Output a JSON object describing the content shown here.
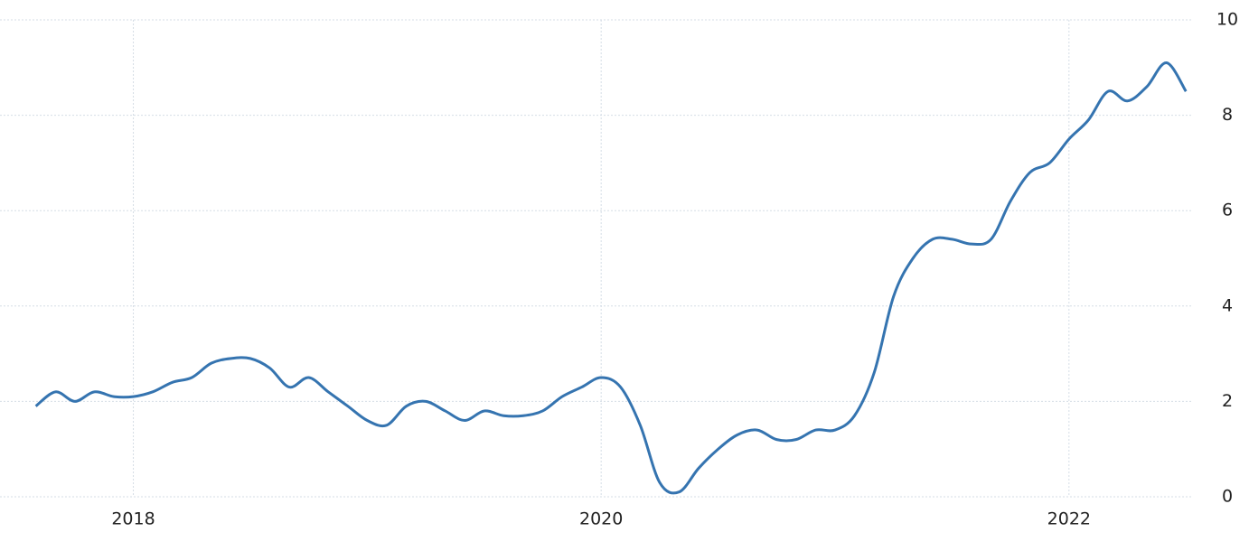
{
  "chart_data": {
    "type": "line",
    "color": "#3574b0",
    "x": [
      2017.583,
      2017.667,
      2017.75,
      2017.833,
      2017.917,
      2018,
      2018.083,
      2018.167,
      2018.25,
      2018.333,
      2018.417,
      2018.5,
      2018.583,
      2018.667,
      2018.75,
      2018.833,
      2018.917,
      2019,
      2019.083,
      2019.167,
      2019.25,
      2019.333,
      2019.417,
      2019.5,
      2019.583,
      2019.667,
      2019.75,
      2019.833,
      2019.917,
      2020,
      2020.083,
      2020.167,
      2020.25,
      2020.333,
      2020.417,
      2020.5,
      2020.583,
      2020.667,
      2020.75,
      2020.833,
      2020.917,
      2021,
      2021.083,
      2021.167,
      2021.25,
      2021.333,
      2021.417,
      2021.5,
      2021.583,
      2021.667,
      2021.75,
      2021.833,
      2021.917,
      2022,
      2022.083,
      2022.167,
      2022.25,
      2022.333,
      2022.417,
      2022.5
    ],
    "values": [
      1.9,
      2.2,
      2.0,
      2.2,
      2.1,
      2.1,
      2.2,
      2.4,
      2.5,
      2.8,
      2.9,
      2.9,
      2.7,
      2.3,
      2.5,
      2.2,
      1.9,
      1.6,
      1.5,
      1.9,
      2.0,
      1.8,
      1.6,
      1.8,
      1.7,
      1.7,
      1.8,
      2.1,
      2.3,
      2.5,
      2.3,
      1.5,
      0.3,
      0.1,
      0.6,
      1.0,
      1.3,
      1.4,
      1.2,
      1.2,
      1.4,
      1.4,
      1.7,
      2.6,
      4.2,
      5.0,
      5.4,
      5.4,
      5.3,
      5.4,
      6.2,
      6.8,
      7.0,
      7.5,
      7.9,
      8.5,
      8.3,
      8.6,
      9.1,
      8.5
    ],
    "xlim": [
      2017.43,
      2022.53
    ],
    "xticks": [
      2018,
      2020,
      2022
    ],
    "ylim": [
      0,
      10
    ],
    "yticks": [
      0,
      2,
      4,
      6,
      8,
      10
    ],
    "grid": true
  }
}
